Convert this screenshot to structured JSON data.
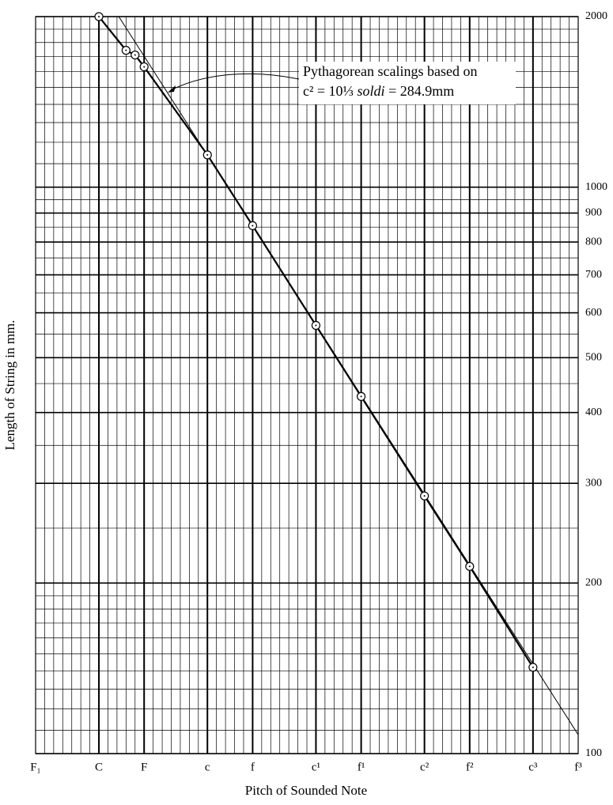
{
  "chart_data": {
    "type": "line",
    "ylabel": "Length of String in mm.",
    "xlabel": "Pitch of Sounded Note",
    "log_y": true,
    "grid": true,
    "color": "#000000",
    "xlim": [
      0,
      60
    ],
    "xticks": [
      {
        "value": 0,
        "label": "F₁"
      },
      {
        "value": 7,
        "label": "C"
      },
      {
        "value": 12,
        "label": "F"
      },
      {
        "value": 19,
        "label": "c"
      },
      {
        "value": 24,
        "label": "f"
      },
      {
        "value": 31,
        "label": "c¹"
      },
      {
        "value": 36,
        "label": "f¹"
      },
      {
        "value": 43,
        "label": "c²"
      },
      {
        "value": 48,
        "label": "f²"
      },
      {
        "value": 55,
        "label": "c³"
      },
      {
        "value": 60,
        "label": "f³"
      }
    ],
    "ylim": [
      100,
      2000
    ],
    "yticks": [
      100,
      200,
      300,
      400,
      500,
      600,
      700,
      800,
      900,
      1000,
      2000
    ],
    "x": [
      7,
      10,
      11,
      12,
      19,
      24,
      31,
      36,
      43,
      48,
      55
    ],
    "values": [
      2000,
      1744,
      1711,
      1631,
      1140,
      855,
      570,
      427,
      285,
      214,
      142
    ],
    "reference_line": {
      "x": [
        9.2,
        60
      ],
      "values": [
        2000,
        108
      ]
    },
    "annotation": {
      "line1": "Pythagorean scalings based on",
      "line2": [
        "c² = 10⅓ ",
        "soldi",
        " = 284.9mm"
      ]
    }
  }
}
